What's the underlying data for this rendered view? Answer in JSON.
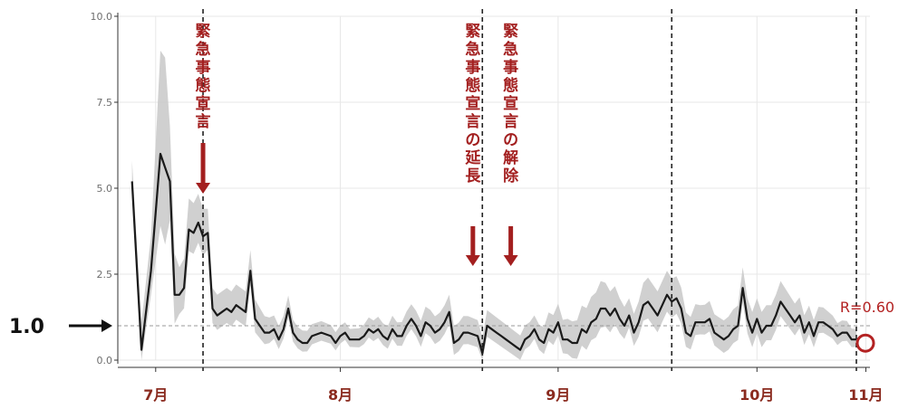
{
  "chart_data": {
    "type": "line",
    "title": "",
    "xlabel": "",
    "ylabel": "",
    "ylim": [
      0,
      10
    ],
    "yticks": [
      "0.0",
      "2.5",
      "5.0",
      "7.5",
      "10.0"
    ],
    "ytick_values": [
      0,
      2.5,
      5,
      7.5,
      10
    ],
    "x_day_range": [
      -8,
      148
    ],
    "xticks": [
      {
        "label": "7月",
        "day": 0
      },
      {
        "label": "8月",
        "day": 39
      },
      {
        "label": "9月",
        "day": 85
      },
      {
        "label": "10月",
        "day": 127
      },
      {
        "label": "11月",
        "day": 150
      }
    ],
    "grid": true,
    "reference_line": {
      "value": 1.0,
      "label": "1.0"
    },
    "vlines_day": [
      10,
      69,
      109,
      148
    ],
    "annotations": [
      {
        "text": "緊急事態宣言",
        "day": 10
      },
      {
        "text": "緊急事態宣言の延長",
        "day": 67
      },
      {
        "text": "緊急事態宣言の解除",
        "day": 75
      }
    ],
    "end_label": "R=0.60",
    "series": [
      {
        "values": [
          [
            -5,
            5.2
          ],
          [
            -3,
            0.3
          ],
          [
            -1,
            2.6
          ],
          [
            1,
            6.0
          ],
          [
            2,
            5.6
          ],
          [
            3,
            5.2
          ],
          [
            4,
            1.9
          ],
          [
            5,
            1.9
          ],
          [
            6,
            2.1
          ],
          [
            7,
            3.8
          ],
          [
            8,
            3.7
          ],
          [
            9,
            4.0
          ],
          [
            10,
            3.6
          ],
          [
            11,
            3.7
          ],
          [
            12,
            1.5
          ],
          [
            13,
            1.3
          ],
          [
            14,
            1.4
          ],
          [
            15,
            1.5
          ],
          [
            16,
            1.4
          ],
          [
            17,
            1.6
          ],
          [
            18,
            1.5
          ],
          [
            19,
            1.4
          ],
          [
            20,
            2.6
          ],
          [
            21,
            1.2
          ],
          [
            22,
            1.0
          ],
          [
            23,
            0.8
          ],
          [
            24,
            0.8
          ],
          [
            25,
            0.9
          ],
          [
            26,
            0.6
          ],
          [
            27,
            0.9
          ],
          [
            28,
            1.5
          ],
          [
            29,
            0.8
          ],
          [
            30,
            0.6
          ],
          [
            31,
            0.5
          ],
          [
            32,
            0.5
          ],
          [
            33,
            0.7
          ],
          [
            35,
            0.8
          ],
          [
            37,
            0.7
          ],
          [
            38,
            0.5
          ],
          [
            39,
            0.7
          ],
          [
            40,
            0.8
          ],
          [
            41,
            0.6
          ],
          [
            43,
            0.6
          ],
          [
            44,
            0.7
          ],
          [
            45,
            0.9
          ],
          [
            46,
            0.8
          ],
          [
            47,
            0.9
          ],
          [
            48,
            0.7
          ],
          [
            49,
            0.6
          ],
          [
            50,
            0.9
          ],
          [
            51,
            0.7
          ],
          [
            52,
            0.7
          ],
          [
            53,
            1.0
          ],
          [
            54,
            1.2
          ],
          [
            55,
            1.0
          ],
          [
            56,
            0.7
          ],
          [
            57,
            1.1
          ],
          [
            58,
            1.0
          ],
          [
            59,
            0.8
          ],
          [
            60,
            0.9
          ],
          [
            61,
            1.1
          ],
          [
            62,
            1.4
          ],
          [
            63,
            0.5
          ],
          [
            64,
            0.6
          ],
          [
            65,
            0.8
          ],
          [
            66,
            0.8
          ],
          [
            68,
            0.7
          ],
          [
            69,
            0.2
          ],
          [
            70,
            1.0
          ],
          [
            71,
            0.9
          ],
          [
            72,
            0.8
          ],
          [
            73,
            0.7
          ],
          [
            74,
            0.6
          ],
          [
            75,
            0.5
          ],
          [
            76,
            0.4
          ],
          [
            77,
            0.3
          ],
          [
            78,
            0.6
          ],
          [
            79,
            0.7
          ],
          [
            80,
            0.9
          ],
          [
            81,
            0.6
          ],
          [
            82,
            0.5
          ],
          [
            83,
            0.9
          ],
          [
            84,
            0.8
          ],
          [
            85,
            1.1
          ],
          [
            86,
            0.6
          ],
          [
            87,
            0.6
          ],
          [
            88,
            0.5
          ],
          [
            89,
            0.5
          ],
          [
            90,
            0.9
          ],
          [
            91,
            0.8
          ],
          [
            92,
            1.1
          ],
          [
            93,
            1.2
          ],
          [
            94,
            1.5
          ],
          [
            95,
            1.5
          ],
          [
            96,
            1.3
          ],
          [
            97,
            1.5
          ],
          [
            98,
            1.2
          ],
          [
            99,
            1.0
          ],
          [
            100,
            1.3
          ],
          [
            101,
            0.8
          ],
          [
            102,
            1.1
          ],
          [
            103,
            1.6
          ],
          [
            104,
            1.7
          ],
          [
            105,
            1.5
          ],
          [
            106,
            1.3
          ],
          [
            107,
            1.6
          ],
          [
            108,
            1.9
          ],
          [
            109,
            1.7
          ],
          [
            110,
            1.8
          ],
          [
            111,
            1.5
          ],
          [
            112,
            0.8
          ],
          [
            113,
            0.7
          ],
          [
            114,
            1.1
          ],
          [
            115,
            1.1
          ],
          [
            116,
            1.1
          ],
          [
            117,
            1.2
          ],
          [
            118,
            0.8
          ],
          [
            119,
            0.7
          ],
          [
            120,
            0.6
          ],
          [
            121,
            0.7
          ],
          [
            122,
            0.9
          ],
          [
            123,
            1.0
          ],
          [
            124,
            2.1
          ],
          [
            125,
            1.2
          ],
          [
            126,
            0.8
          ],
          [
            127,
            1.2
          ],
          [
            128,
            0.8
          ],
          [
            129,
            1.0
          ],
          [
            130,
            1.0
          ],
          [
            131,
            1.3
          ],
          [
            132,
            1.7
          ],
          [
            133,
            1.5
          ],
          [
            134,
            1.3
          ],
          [
            135,
            1.1
          ],
          [
            136,
            1.3
          ],
          [
            137,
            0.8
          ],
          [
            138,
            1.1
          ],
          [
            139,
            0.7
          ],
          [
            140,
            1.1
          ],
          [
            141,
            1.1
          ],
          [
            142,
            1.0
          ],
          [
            143,
            0.9
          ],
          [
            144,
            0.7
          ],
          [
            145,
            0.8
          ],
          [
            146,
            0.8
          ],
          [
            147,
            0.6
          ],
          [
            148,
            0.6
          ]
        ],
        "band_pad": [
          [
            -5,
            0.6
          ],
          [
            -1,
            1.0
          ],
          [
            1,
            3.0
          ],
          [
            2,
            3.2
          ],
          [
            3,
            1.6
          ],
          [
            5,
            0.8
          ],
          [
            7,
            0.9
          ],
          [
            10,
            0.8
          ],
          [
            12,
            0.6
          ],
          [
            20,
            0.6
          ],
          [
            25,
            0.4
          ],
          [
            40,
            0.3
          ],
          [
            62,
            0.5
          ],
          [
            80,
            0.4
          ],
          [
            94,
            0.8
          ],
          [
            100,
            0.5
          ],
          [
            104,
            0.7
          ],
          [
            108,
            0.7
          ],
          [
            115,
            0.5
          ],
          [
            124,
            0.6
          ],
          [
            132,
            0.6
          ],
          [
            148,
            0.3
          ]
        ]
      }
    ],
    "colors": {
      "line": "#1a1a1a",
      "band": "#c8c8c8",
      "grid": "#e7e7e7",
      "annotation": "#a31f1f",
      "xtick": "#8a2a1e",
      "rlabel": "#b32222"
    }
  }
}
